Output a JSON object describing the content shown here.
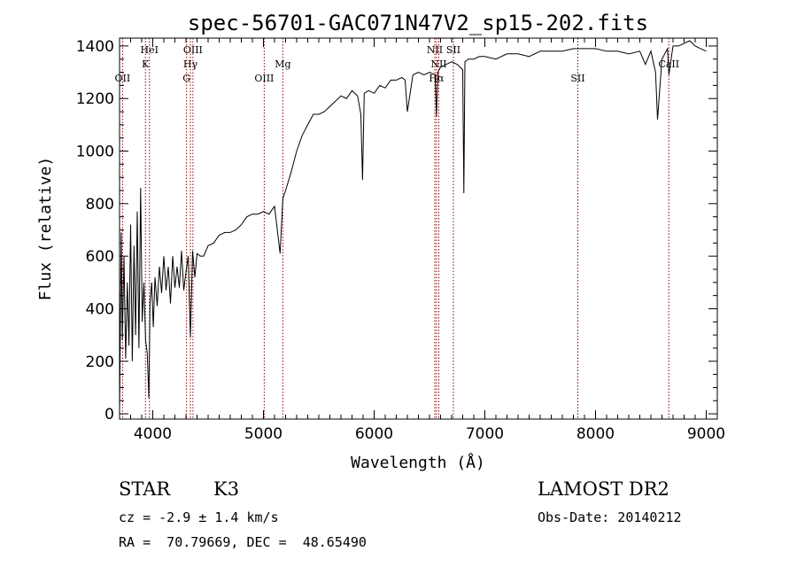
{
  "chart_data": {
    "type": "line",
    "title": "spec-56701-GAC071N47V2_sp15-202.fits",
    "xlabel": "Wavelength (Å)",
    "ylabel": "Flux (relative)",
    "xlim": [
      3700,
      9100
    ],
    "ylim": [
      -20,
      1430
    ],
    "x_ticks": [
      4000,
      5000,
      6000,
      7000,
      8000,
      9000
    ],
    "y_ticks": [
      0,
      200,
      400,
      600,
      800,
      1000,
      1200,
      1400
    ],
    "grid": false,
    "line_color": "#000000",
    "marker_color": "#8b0000",
    "spectrum": {
      "x": [
        3700,
        3715,
        3725,
        3740,
        3755,
        3770,
        3785,
        3800,
        3815,
        3830,
        3845,
        3860,
        3875,
        3890,
        3905,
        3920,
        3935,
        3950,
        3965,
        3975,
        3990,
        4005,
        4020,
        4040,
        4060,
        4080,
        4100,
        4120,
        4140,
        4160,
        4180,
        4200,
        4220,
        4240,
        4260,
        4280,
        4300,
        4320,
        4340,
        4360,
        4380,
        4400,
        4430,
        4460,
        4500,
        4550,
        4600,
        4650,
        4700,
        4750,
        4800,
        4850,
        4900,
        4950,
        5000,
        5050,
        5100,
        5150,
        5175,
        5200,
        5250,
        5300,
        5350,
        5400,
        5450,
        5500,
        5550,
        5600,
        5650,
        5700,
        5750,
        5800,
        5850,
        5880,
        5895,
        5910,
        5950,
        6000,
        6050,
        6100,
        6150,
        6200,
        6250,
        6280,
        6300,
        6350,
        6400,
        6450,
        6500,
        6550,
        6563,
        6575,
        6600,
        6650,
        6700,
        6750,
        6800,
        6810,
        6820,
        6850,
        6900,
        6950,
        7000,
        7100,
        7200,
        7300,
        7400,
        7500,
        7600,
        7700,
        7800,
        7900,
        8000,
        8100,
        8200,
        8300,
        8400,
        8450,
        8500,
        8542,
        8560,
        8600,
        8650,
        8662,
        8700,
        8750,
        8800,
        8850,
        8900,
        8950,
        9000
      ],
      "y": [
        0,
        690,
        280,
        600,
        210,
        500,
        260,
        720,
        200,
        640,
        300,
        770,
        250,
        860,
        350,
        500,
        280,
        230,
        60,
        420,
        500,
        330,
        520,
        410,
        560,
        460,
        600,
        470,
        560,
        420,
        600,
        480,
        560,
        480,
        620,
        470,
        540,
        600,
        290,
        620,
        520,
        610,
        600,
        600,
        640,
        650,
        680,
        690,
        690,
        700,
        720,
        750,
        760,
        760,
        770,
        760,
        790,
        610,
        820,
        850,
        920,
        1000,
        1060,
        1100,
        1140,
        1140,
        1150,
        1170,
        1190,
        1210,
        1200,
        1230,
        1210,
        1140,
        890,
        1220,
        1230,
        1220,
        1250,
        1240,
        1270,
        1270,
        1280,
        1270,
        1150,
        1290,
        1300,
        1290,
        1300,
        1290,
        1130,
        1300,
        1320,
        1330,
        1340,
        1330,
        1310,
        840,
        1340,
        1350,
        1350,
        1360,
        1360,
        1350,
        1370,
        1370,
        1360,
        1380,
        1380,
        1380,
        1390,
        1390,
        1390,
        1380,
        1380,
        1370,
        1380,
        1330,
        1380,
        1300,
        1120,
        1350,
        1390,
        1290,
        1400,
        1400,
        1410,
        1420,
        1400,
        1390,
        1380
      ]
    },
    "lines": [
      {
        "name": "OII",
        "x": 3727
      },
      {
        "name": "K",
        "x": 3934
      },
      {
        "name": "HeI",
        "x": 3970
      },
      {
        "name": "G",
        "x": 4305
      },
      {
        "name": "Hγ",
        "x": 4340
      },
      {
        "name": "OIII",
        "x": 4363
      },
      {
        "name": "OIII",
        "x": 5007
      },
      {
        "name": "Mg",
        "x": 5175
      },
      {
        "name": "NII",
        "x": 6548
      },
      {
        "name": "Hα",
        "x": 6563
      },
      {
        "name": "NII",
        "x": 6584
      },
      {
        "name": "SII",
        "x": 6716
      },
      {
        "name": "SII",
        "x": 7840
      },
      {
        "name": "CaII",
        "x": 8662
      }
    ]
  },
  "labels": {
    "class": "STAR",
    "subclass": "K3",
    "cz": "cz = -2.9 ± 1.4 km/s",
    "radec": "RA =  70.79669, DEC =  48.65490",
    "survey": "LAMOST DR2",
    "obsdate": "Obs-Date: 20140212"
  }
}
